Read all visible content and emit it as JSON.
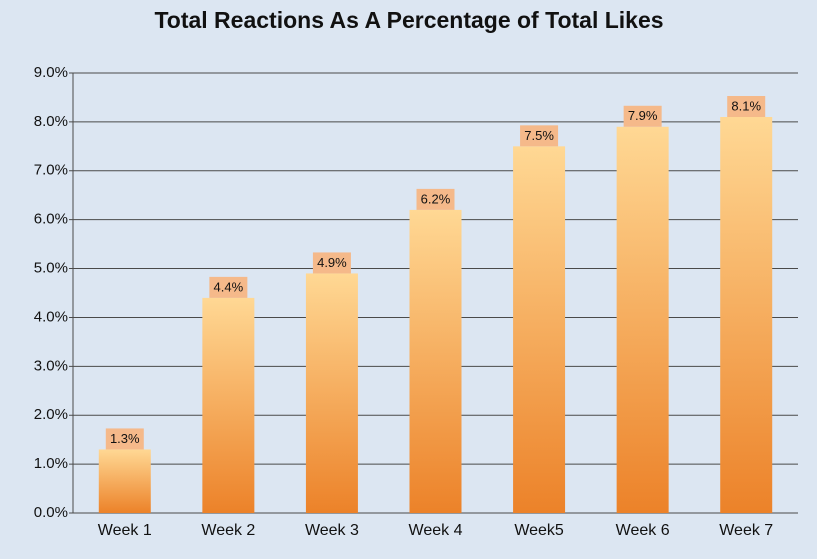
{
  "chart_data": {
    "type": "bar",
    "title": "Total Reactions As A Percentage of Total Likes",
    "categories": [
      "Week 1",
      "Week 2",
      "Week 3",
      "Week 4",
      "Week5",
      "Week 6",
      "Week 7"
    ],
    "values": [
      1.3,
      4.4,
      4.9,
      6.2,
      7.5,
      7.9,
      8.1
    ],
    "value_labels": [
      "1.3%",
      "4.4%",
      "4.9%",
      "6.2%",
      "7.5%",
      "7.9%",
      "8.1%"
    ],
    "gradient": [
      "#ffd894",
      "#ec8229"
    ],
    "label_color": "#f5b98a",
    "ylim": [
      0,
      9
    ],
    "yticks": [
      {
        "value": 0,
        "label": "0.0%"
      },
      {
        "value": 1,
        "label": "1.0%"
      },
      {
        "value": 2,
        "label": "2.0%"
      },
      {
        "value": 3,
        "label": "3.0%"
      },
      {
        "value": 4,
        "label": "4.0%"
      },
      {
        "value": 5,
        "label": "5.0%"
      },
      {
        "value": 6,
        "label": "6.0%"
      },
      {
        "value": 7,
        "label": "7.0%"
      },
      {
        "value": 8,
        "label": "8.0%"
      },
      {
        "value": 9,
        "label": "9.0%"
      }
    ],
    "grid": true
  }
}
